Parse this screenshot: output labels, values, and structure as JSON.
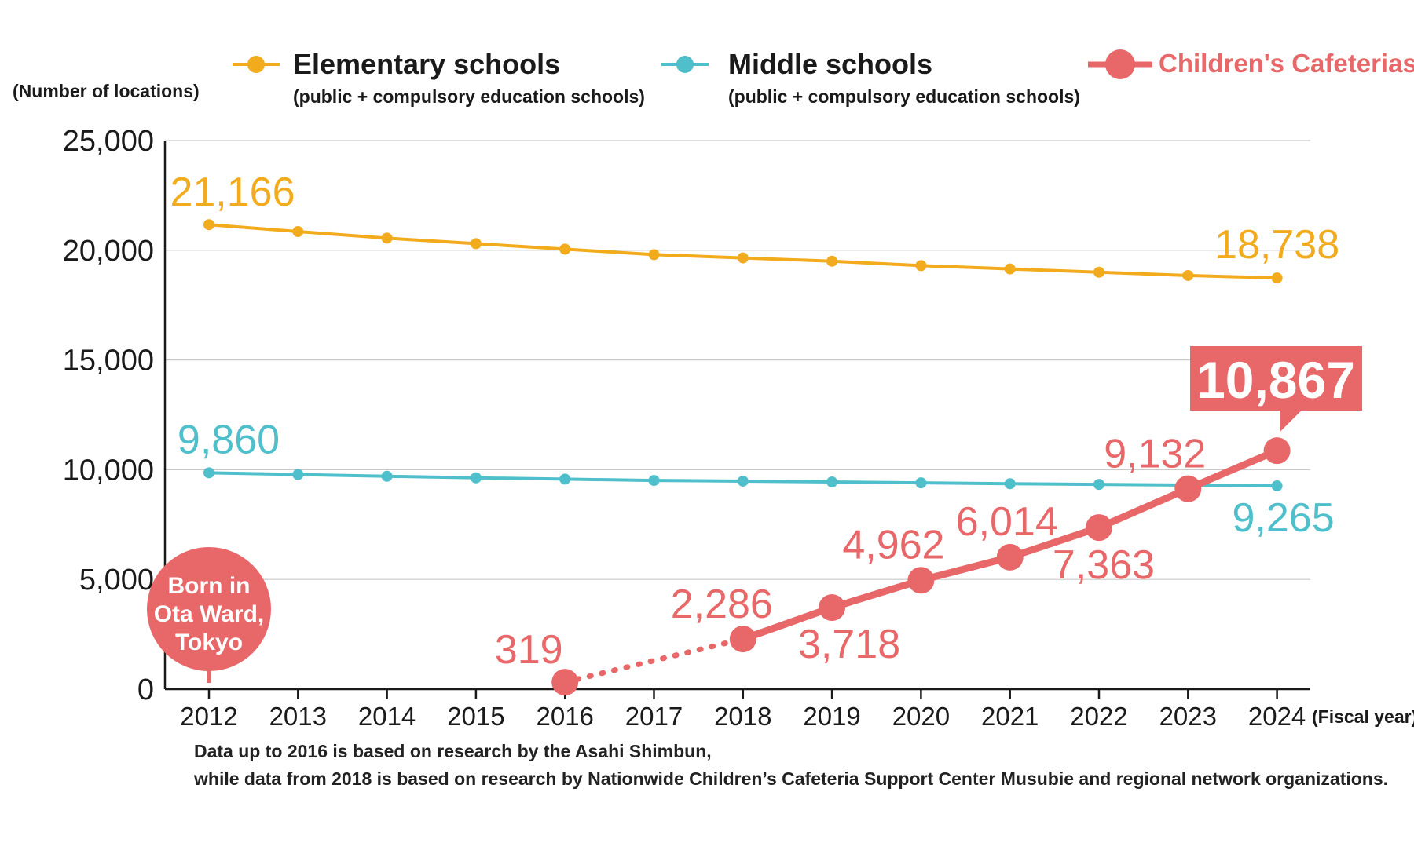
{
  "chart_data": {
    "type": "line",
    "ylabel": "(Number of locations)",
    "xlabel": "(Fiscal year)",
    "ylim": [
      0,
      25000
    ],
    "yticks": [
      "0",
      "5,000",
      "10,000",
      "15,000",
      "20,000",
      "25,000"
    ],
    "x": [
      "2012",
      "2013",
      "2014",
      "2015",
      "2016",
      "2017",
      "2018",
      "2019",
      "2020",
      "2021",
      "2022",
      "2023",
      "2024"
    ],
    "grid": true,
    "legend_position": "top",
    "series": [
      {
        "name": "Elementary schools",
        "subtitle": "(public + compulsory education schools)",
        "color": "#f2ab1c",
        "values": [
          21166,
          20850,
          20550,
          20300,
          20050,
          19800,
          19650,
          19500,
          19300,
          19150,
          19000,
          18850,
          18738
        ],
        "labels": [
          {
            "index": 0,
            "text": "21,166"
          },
          {
            "index": 12,
            "text": "18,738"
          }
        ]
      },
      {
        "name": "Middle schools",
        "subtitle": "(public + compulsory education schools)",
        "color": "#4fbfcc",
        "values": [
          9860,
          9780,
          9700,
          9630,
          9570,
          9510,
          9480,
          9440,
          9400,
          9360,
          9330,
          9300,
          9265
        ],
        "labels": [
          {
            "index": 0,
            "text": "9,860"
          },
          {
            "index": 12,
            "text": "9,265"
          }
        ]
      },
      {
        "name": "Children's Cafeterias",
        "color": "#e8686a",
        "points": [
          {
            "x": "2016",
            "value": 319,
            "label": "319"
          },
          {
            "x": "2018",
            "value": 2286,
            "label": "2,286"
          },
          {
            "x": "2019",
            "value": 3718,
            "label": "3,718"
          },
          {
            "x": "2020",
            "value": 4962,
            "label": "4,962"
          },
          {
            "x": "2021",
            "value": 6014,
            "label": "6,014"
          },
          {
            "x": "2022",
            "value": 7363,
            "label": "7,363"
          },
          {
            "x": "2023",
            "value": 9132,
            "label": "9,132"
          },
          {
            "x": "2024",
            "value": 10867,
            "label": "10,867"
          }
        ],
        "dotted_segment": [
          "2016",
          "2018"
        ]
      }
    ],
    "annotations": [
      {
        "text_lines": [
          "Born in",
          "Ota Ward,",
          "Tokyo"
        ],
        "x": "2012"
      }
    ]
  },
  "notes": [
    "Data up to 2016 is based on research by the Asahi Shimbun,",
    "while data from 2018 is based on research by Nationwide Children’s Cafeteria Support Center Musubie and regional network organizations."
  ]
}
